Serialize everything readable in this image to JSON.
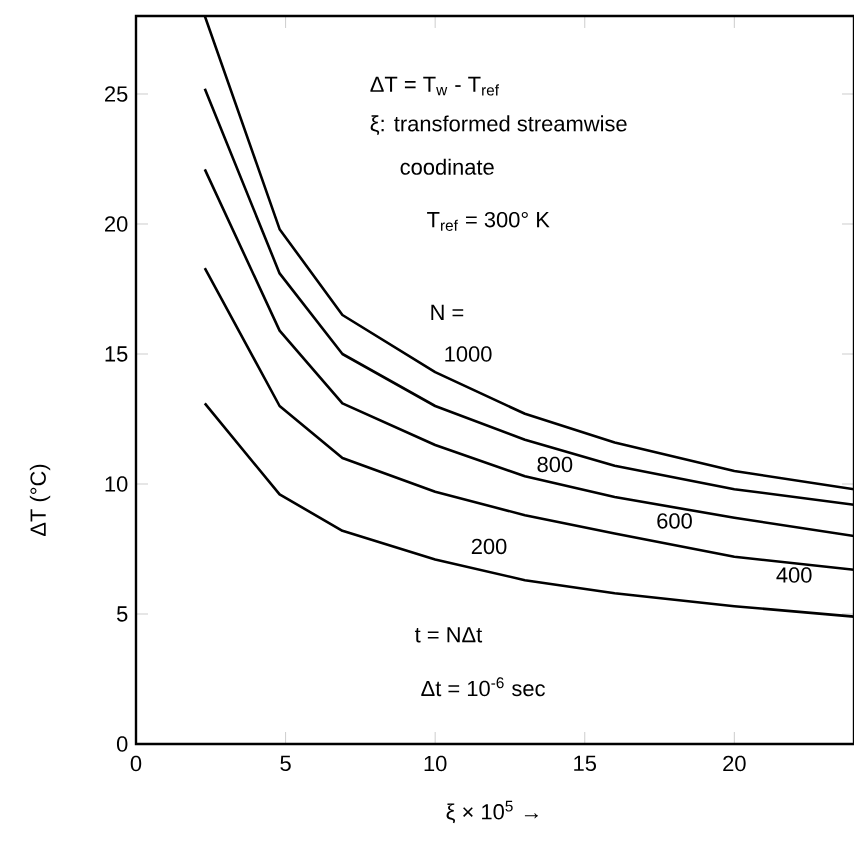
{
  "chart_data": {
    "type": "line",
    "xlabel": "ξ × 10$^{5}$ →",
    "ylabel": "ΔT (°C)",
    "xlim": [
      0,
      24
    ],
    "ylim": [
      0,
      28
    ],
    "xticks": [
      0,
      5,
      10,
      15,
      20
    ],
    "yticks": [
      0,
      5,
      10,
      15,
      20,
      25
    ],
    "grid": false,
    "legend": false,
    "marker": "none",
    "line_style": "solid",
    "x": [
      2.3,
      4.8,
      6.9,
      10,
      13,
      16,
      20,
      24
    ],
    "series": [
      {
        "name": "1000",
        "color": "#000000",
        "values": [
          28,
          19.8,
          16.5,
          14.3,
          12.7,
          11.6,
          10.5,
          9.8
        ]
      },
      {
        "name": "800",
        "color": "#000000",
        "values": [
          25.2,
          18.1,
          15.0,
          13.0,
          11.7,
          10.7,
          9.8,
          9.2
        ]
      },
      {
        "name": "600",
        "color": "#000000",
        "values": [
          22.1,
          15.9,
          13.1,
          11.5,
          10.3,
          9.5,
          8.7,
          8.0
        ]
      },
      {
        "name": "400",
        "color": "#000000",
        "values": [
          18.3,
          13.0,
          11.0,
          9.7,
          8.8,
          8.1,
          7.2,
          6.7
        ]
      },
      {
        "name": "200",
        "color": "#000000",
        "values": [
          13.1,
          9.6,
          8.2,
          7.1,
          6.3,
          5.8,
          5.3,
          4.9
        ]
      }
    ],
    "annotations": [
      "ΔT = T$_{w}$ - T$_{ref}$",
      "ξ: transformed streamwise",
      "coodinate",
      "T$_{ref}$ = 300° K",
      "N =",
      "t = NΔt",
      "Δt = 10$^{-6}$ sec"
    ]
  }
}
